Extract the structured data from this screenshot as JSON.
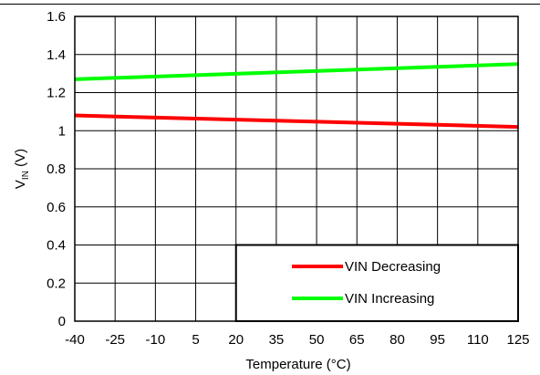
{
  "chart_data": {
    "type": "line",
    "title": "",
    "xlabel": "Temperature (°C)",
    "ylabel_main": "V",
    "ylabel_sub": "IN",
    "ylabel_unit": " (V)",
    "x_ticks": [
      "-40",
      "-25",
      "-10",
      "5",
      "20",
      "35",
      "50",
      "65",
      "80",
      "95",
      "110",
      "125"
    ],
    "y_ticks": [
      "0",
      "0.2",
      "0.4",
      "0.6",
      "0.8",
      "1",
      "1.2",
      "1.4",
      "1.6"
    ],
    "xlim": [
      -40,
      125
    ],
    "ylim": [
      0,
      1.6
    ],
    "grid": true,
    "legend_position": "bottom-right",
    "series": [
      {
        "name": "VIN Decreasing",
        "color": "#ff0000",
        "x": [
          -40,
          125
        ],
        "y": [
          1.08,
          1.02
        ]
      },
      {
        "name": "VIN Increasing",
        "color": "#00ff00",
        "x": [
          -40,
          125
        ],
        "y": [
          1.27,
          1.35
        ]
      }
    ]
  }
}
